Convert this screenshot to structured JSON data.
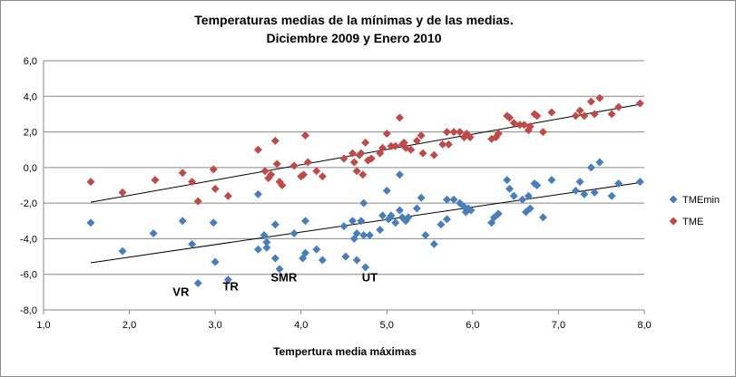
{
  "chart_data": {
    "type": "scatter",
    "title": "Temperaturas medias de la mínimas y de las medias.",
    "subtitle": "Diciembre 2009 y Enero 2010",
    "xlabel": "Tempertura media máximas",
    "ylabel": "",
    "xlim": [
      1.0,
      8.0
    ],
    "ylim": [
      -8.0,
      6.0
    ],
    "x_ticks": [
      "1,0",
      "2,0",
      "3,0",
      "4,0",
      "5,0",
      "6,0",
      "7,0",
      "8,0"
    ],
    "y_ticks": [
      "6,0",
      "4,0",
      "2,0",
      "0,0",
      "-2,0",
      "-4,0",
      "-6,0",
      "-8,0"
    ],
    "grid": "horizontal",
    "legend": "right",
    "annotations": [
      {
        "text": "VR",
        "x": 2.6,
        "y": -7.2
      },
      {
        "text": "TR",
        "x": 3.18,
        "y": -6.9
      },
      {
        "text": "SMR",
        "x": 3.8,
        "y": -6.4
      },
      {
        "text": "UT",
        "x": 4.8,
        "y": -6.4
      }
    ],
    "series": [
      {
        "name": "TMEmin",
        "color": "#4a7ebb",
        "marker": "diamond",
        "trendline": [
          [
            1.55,
            -5.35
          ],
          [
            7.95,
            -0.85
          ]
        ],
        "points": [
          [
            1.55,
            -3.1
          ],
          [
            1.92,
            -4.7
          ],
          [
            2.28,
            -3.7
          ],
          [
            2.62,
            -3.0
          ],
          [
            2.73,
            -4.3
          ],
          [
            2.8,
            -6.5
          ],
          [
            2.98,
            -3.1
          ],
          [
            3.0,
            -5.3
          ],
          [
            3.15,
            -6.3
          ],
          [
            3.5,
            -1.5
          ],
          [
            3.5,
            -4.6
          ],
          [
            3.57,
            -3.8
          ],
          [
            3.6,
            -4.2
          ],
          [
            3.6,
            -4.5
          ],
          [
            3.7,
            -3.2
          ],
          [
            3.7,
            -5.1
          ],
          [
            3.75,
            -5.7
          ],
          [
            3.92,
            -3.7
          ],
          [
            4.02,
            -5.1
          ],
          [
            4.05,
            -3.0
          ],
          [
            4.05,
            -4.8
          ],
          [
            4.18,
            -4.6
          ],
          [
            4.25,
            -5.2
          ],
          [
            4.5,
            -3.3
          ],
          [
            4.52,
            -5.0
          ],
          [
            4.6,
            -3.0
          ],
          [
            4.62,
            -4.0
          ],
          [
            4.65,
            -3.7
          ],
          [
            4.65,
            -5.2
          ],
          [
            4.7,
            -3.0
          ],
          [
            4.73,
            -2.0
          ],
          [
            4.73,
            -3.8
          ],
          [
            4.75,
            -5.6
          ],
          [
            4.8,
            -3.8
          ],
          [
            4.92,
            -3.5
          ],
          [
            4.95,
            -2.7
          ],
          [
            5.0,
            -1.3
          ],
          [
            5.02,
            -2.9
          ],
          [
            5.05,
            -2.7
          ],
          [
            5.1,
            -3.1
          ],
          [
            5.15,
            -0.4
          ],
          [
            5.15,
            -2.4
          ],
          [
            5.18,
            -2.8
          ],
          [
            5.22,
            -3.0
          ],
          [
            5.25,
            -2.8
          ],
          [
            5.35,
            -2.3
          ],
          [
            5.4,
            -1.7
          ],
          [
            5.45,
            -3.8
          ],
          [
            5.55,
            -4.3
          ],
          [
            5.63,
            -3.2
          ],
          [
            5.7,
            -1.8
          ],
          [
            5.7,
            -2.9
          ],
          [
            5.78,
            -1.8
          ],
          [
            5.85,
            -2.0
          ],
          [
            5.9,
            -2.2
          ],
          [
            5.92,
            -2.5
          ],
          [
            5.95,
            -2.3
          ],
          [
            5.98,
            -2.4
          ],
          [
            6.22,
            -3.1
          ],
          [
            6.25,
            -2.8
          ],
          [
            6.3,
            -2.6
          ],
          [
            6.4,
            -0.7
          ],
          [
            6.43,
            -1.2
          ],
          [
            6.48,
            -1.6
          ],
          [
            6.58,
            -1.8
          ],
          [
            6.62,
            -2.5
          ],
          [
            6.65,
            -1.6
          ],
          [
            6.67,
            -2.3
          ],
          [
            6.72,
            -0.9
          ],
          [
            6.75,
            -1.0
          ],
          [
            6.82,
            -2.8
          ],
          [
            6.92,
            -0.7
          ],
          [
            7.2,
            -1.3
          ],
          [
            7.25,
            -0.8
          ],
          [
            7.3,
            -1.5
          ],
          [
            7.38,
            0.0
          ],
          [
            7.42,
            -1.4
          ],
          [
            7.48,
            0.3
          ],
          [
            7.62,
            -1.6
          ],
          [
            7.7,
            -0.9
          ],
          [
            7.95,
            -0.8
          ]
        ]
      },
      {
        "name": "TME",
        "color": "#be4b48",
        "marker": "diamond",
        "trendline": [
          [
            1.55,
            -1.95
          ],
          [
            7.95,
            3.55
          ]
        ],
        "points": [
          [
            1.55,
            -0.8
          ],
          [
            1.92,
            -1.4
          ],
          [
            2.3,
            -0.7
          ],
          [
            2.62,
            -0.3
          ],
          [
            2.73,
            -0.8
          ],
          [
            2.8,
            -1.9
          ],
          [
            2.98,
            -0.1
          ],
          [
            3.0,
            -1.2
          ],
          [
            3.15,
            -1.6
          ],
          [
            3.5,
            1.0
          ],
          [
            3.58,
            -0.2
          ],
          [
            3.62,
            -0.6
          ],
          [
            3.65,
            -0.4
          ],
          [
            3.7,
            1.5
          ],
          [
            3.72,
            0.2
          ],
          [
            3.75,
            -0.8
          ],
          [
            3.78,
            -1.0
          ],
          [
            3.92,
            0.1
          ],
          [
            4.0,
            -0.5
          ],
          [
            4.03,
            -0.4
          ],
          [
            4.05,
            1.8
          ],
          [
            4.08,
            0.3
          ],
          [
            4.18,
            -0.2
          ],
          [
            4.25,
            -0.5
          ],
          [
            4.5,
            0.5
          ],
          [
            4.6,
            0.8
          ],
          [
            4.62,
            0.3
          ],
          [
            4.65,
            -0.2
          ],
          [
            4.68,
            0.7
          ],
          [
            4.7,
            0.8
          ],
          [
            4.72,
            -0.4
          ],
          [
            4.75,
            1.4
          ],
          [
            4.78,
            0.4
          ],
          [
            4.82,
            0.5
          ],
          [
            4.92,
            0.8
          ],
          [
            4.95,
            1.1
          ],
          [
            5.0,
            1.9
          ],
          [
            5.05,
            1.2
          ],
          [
            5.1,
            1.2
          ],
          [
            5.15,
            2.8
          ],
          [
            5.18,
            1.3
          ],
          [
            5.2,
            1.4
          ],
          [
            5.22,
            1.1
          ],
          [
            5.28,
            1.0
          ],
          [
            5.35,
            1.5
          ],
          [
            5.4,
            1.8
          ],
          [
            5.42,
            0.8
          ],
          [
            5.55,
            0.7
          ],
          [
            5.65,
            1.3
          ],
          [
            5.7,
            2.0
          ],
          [
            5.72,
            1.3
          ],
          [
            5.78,
            2.0
          ],
          [
            5.85,
            2.0
          ],
          [
            5.9,
            1.7
          ],
          [
            5.93,
            1.9
          ],
          [
            5.97,
            1.7
          ],
          [
            6.22,
            1.6
          ],
          [
            6.27,
            1.7
          ],
          [
            6.3,
            1.9
          ],
          [
            6.4,
            2.9
          ],
          [
            6.43,
            2.8
          ],
          [
            6.48,
            2.5
          ],
          [
            6.55,
            2.4
          ],
          [
            6.6,
            2.4
          ],
          [
            6.65,
            2.1
          ],
          [
            6.67,
            2.3
          ],
          [
            6.72,
            3.0
          ],
          [
            6.75,
            2.9
          ],
          [
            6.82,
            2.0
          ],
          [
            6.92,
            3.1
          ],
          [
            7.2,
            2.9
          ],
          [
            7.25,
            3.2
          ],
          [
            7.3,
            2.9
          ],
          [
            7.38,
            3.7
          ],
          [
            7.42,
            3.0
          ],
          [
            7.48,
            3.9
          ],
          [
            7.62,
            3.0
          ],
          [
            7.7,
            3.4
          ],
          [
            7.95,
            3.6
          ]
        ]
      }
    ]
  }
}
